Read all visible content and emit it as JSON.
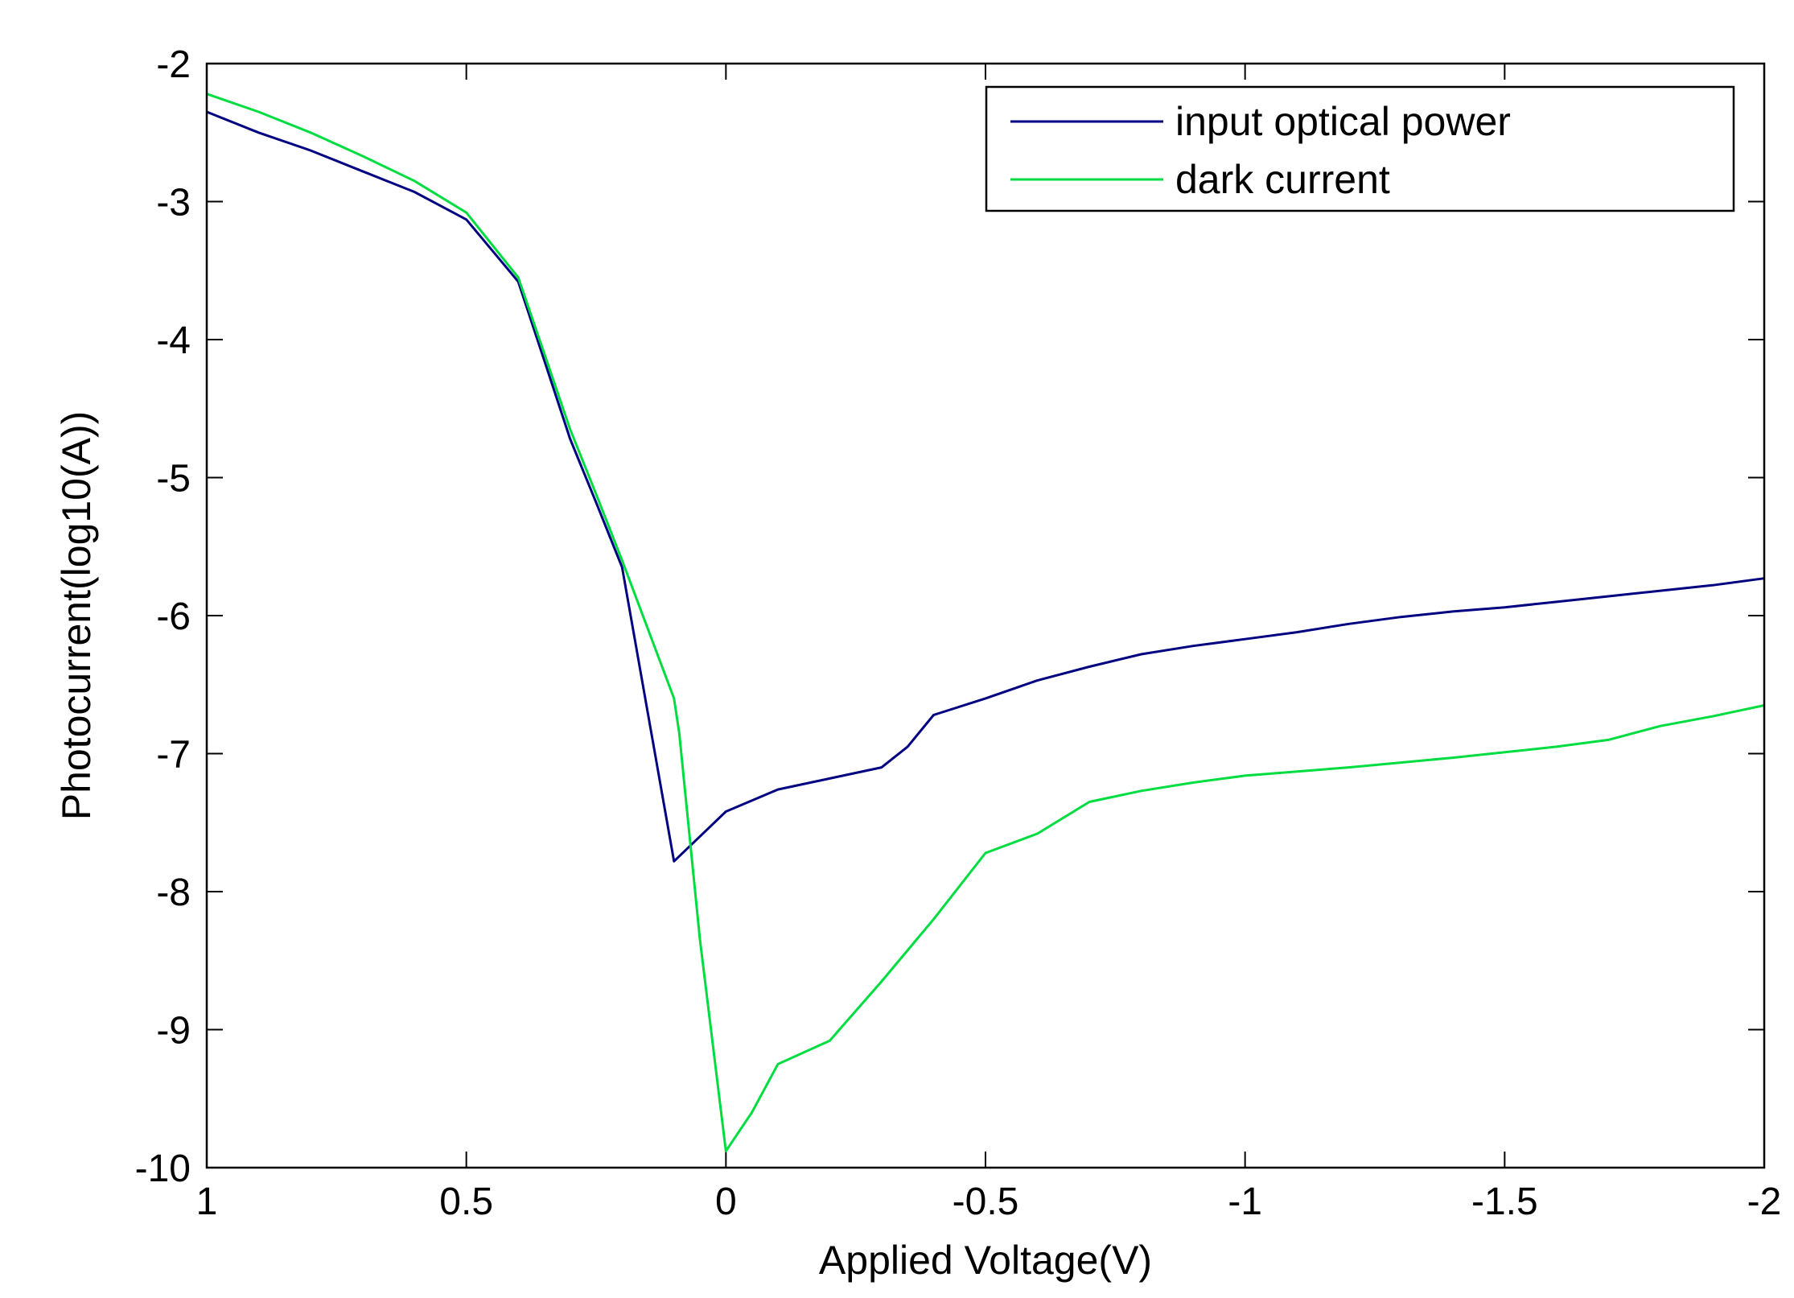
{
  "chart_data": {
    "type": "line",
    "title": "",
    "xlabel": "Applied Voltage(V)",
    "ylabel": "Photocurrent(log10(A))",
    "xlim": [
      1,
      -2
    ],
    "ylim": [
      -10,
      -2
    ],
    "x_reversed": true,
    "grid": false,
    "legend_placement": "top-right",
    "x_ticks": [
      1,
      0.5,
      0,
      -0.5,
      -1,
      -1.5,
      -2
    ],
    "x_tick_labels": [
      "1",
      "0.5",
      "0",
      "-0.5",
      "-1",
      "-1.5",
      "-2"
    ],
    "y_ticks": [
      -2,
      -3,
      -4,
      -5,
      -6,
      -7,
      -8,
      -9,
      -10
    ],
    "y_tick_labels": [
      "-2",
      "-3",
      "-4",
      "-5",
      "-6",
      "-7",
      "-8",
      "-9",
      "-10"
    ],
    "series": [
      {
        "name": "input optical power",
        "color": "#000080",
        "x": [
          1,
          0.9,
          0.8,
          0.7,
          0.6,
          0.5,
          0.4,
          0.35,
          0.3,
          0.25,
          0.2,
          0.1,
          0,
          -0.1,
          -0.2,
          -0.3,
          -0.35,
          -0.4,
          -0.5,
          -0.6,
          -0.7,
          -0.8,
          -0.9,
          -1,
          -1.1,
          -1.2,
          -1.3,
          -1.4,
          -1.5,
          -1.6,
          -1.7,
          -1.8,
          -1.9,
          -2
        ],
        "y": [
          -2.35,
          -2.5,
          -2.63,
          -2.78,
          -2.93,
          -3.13,
          -3.58,
          -4.15,
          -4.72,
          -5.18,
          -5.65,
          -7.78,
          -7.42,
          -7.26,
          -7.18,
          -7.1,
          -6.95,
          -6.72,
          -6.6,
          -6.47,
          -6.37,
          -6.28,
          -6.22,
          -6.17,
          -6.12,
          -6.06,
          -6.01,
          -5.97,
          -5.94,
          -5.9,
          -5.86,
          -5.82,
          -5.78,
          -5.73
        ]
      },
      {
        "name": "dark current",
        "color": "#00dd40",
        "x": [
          1,
          0.9,
          0.8,
          0.7,
          0.6,
          0.5,
          0.4,
          0.35,
          0.3,
          0.25,
          0.2,
          0.1,
          0.09,
          0.05,
          0,
          -0.05,
          -0.1,
          -0.2,
          -0.3,
          -0.4,
          -0.5,
          -0.6,
          -0.7,
          -0.8,
          -0.9,
          -1,
          -1.2,
          -1.4,
          -1.6,
          -1.7,
          -1.8,
          -1.9,
          -2
        ],
        "y": [
          -2.22,
          -2.35,
          -2.5,
          -2.67,
          -2.85,
          -3.08,
          -3.55,
          -4.1,
          -4.65,
          -5.12,
          -5.6,
          -6.6,
          -6.85,
          -8.35,
          -9.88,
          -9.6,
          -9.25,
          -9.08,
          -8.65,
          -8.2,
          -7.72,
          -7.58,
          -7.35,
          -7.27,
          -7.21,
          -7.16,
          -7.1,
          -7.03,
          -6.95,
          -6.9,
          -6.8,
          -6.73,
          -6.65
        ]
      }
    ]
  }
}
